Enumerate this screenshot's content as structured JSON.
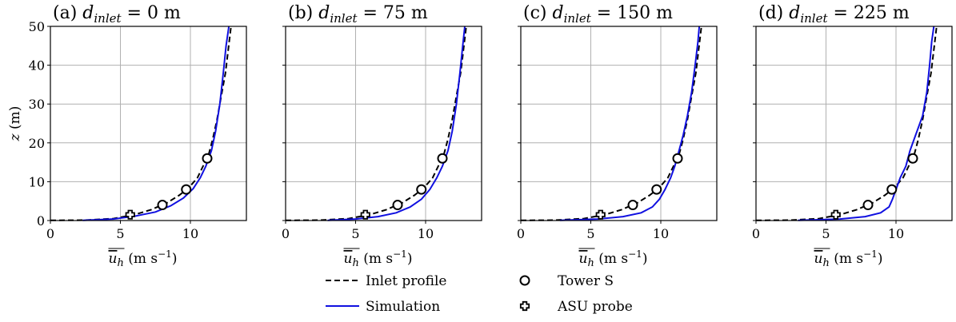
{
  "chart_data": [
    {
      "type": "line",
      "title": "(a) d_inlet = 0 m",
      "title_parts": {
        "prefix": "(a) ",
        "var": "d",
        "sub": "inlet",
        "rest": " = 0 m"
      },
      "xlabel": "u_h (m s⁻¹)",
      "ylabel": "z (m)",
      "xlim": [
        0,
        14
      ],
      "ylim": [
        0,
        50
      ],
      "xticks": [
        0,
        5,
        10
      ],
      "yticks": [
        0,
        10,
        20,
        30,
        40,
        50
      ],
      "grid": true,
      "series": [
        {
          "name": "Inlet profile",
          "style": "dashed",
          "color": "#000000",
          "x": [
            0,
            2.5,
            4.5,
            6.0,
            7.2,
            8.3,
            9.2,
            9.9,
            10.5,
            10.9,
            11.3,
            11.6,
            11.9,
            12.2,
            12.5,
            12.7,
            12.9
          ],
          "y": [
            0.05,
            0.1,
            0.5,
            1.5,
            2.8,
            4.5,
            6.5,
            8.5,
            11,
            14,
            17,
            21,
            26,
            32,
            38,
            44,
            50
          ]
        },
        {
          "name": "Simulation",
          "style": "solid",
          "color": "#1010e0",
          "x": [
            2.3,
            4.5,
            6.0,
            7.5,
            8.6,
            9.5,
            10.2,
            10.7,
            11.1,
            11.5,
            11.8,
            12.1,
            12.35,
            12.55,
            12.75
          ],
          "y": [
            0.05,
            0.4,
            1.1,
            2.2,
            3.8,
            5.8,
            8.2,
            11,
            14,
            18,
            23,
            30,
            38,
            45,
            50
          ]
        },
        {
          "name": "Tower S",
          "style": "marker-circle",
          "x": [
            8.0,
            9.7,
            11.2
          ],
          "y": [
            4,
            8,
            16
          ]
        },
        {
          "name": "ASU probe",
          "style": "marker-plus",
          "x": [
            5.7
          ],
          "y": [
            1.5
          ]
        }
      ]
    },
    {
      "type": "line",
      "title": "(b) d_inlet = 75 m",
      "title_parts": {
        "prefix": "(b) ",
        "var": "d",
        "sub": "inlet",
        "rest": " = 75 m"
      },
      "xlabel": "u_h (m s⁻¹)",
      "xlim": [
        0,
        14
      ],
      "ylim": [
        0,
        50
      ],
      "xticks": [
        0,
        5,
        10
      ],
      "yticks": [
        0,
        10,
        20,
        30,
        40,
        50
      ],
      "grid": true,
      "series": [
        {
          "name": "Inlet profile",
          "style": "dashed",
          "color": "#000000",
          "x": [
            0,
            2.5,
            4.5,
            6.0,
            7.2,
            8.3,
            9.2,
            9.9,
            10.5,
            10.9,
            11.3,
            11.6,
            11.9,
            12.2,
            12.5,
            12.7,
            12.9
          ],
          "y": [
            0.05,
            0.1,
            0.5,
            1.5,
            2.8,
            4.5,
            6.5,
            8.5,
            11,
            14,
            17,
            21,
            26,
            32,
            38,
            44,
            50
          ]
        },
        {
          "name": "Simulation",
          "style": "solid",
          "color": "#1010e0",
          "x": [
            3.0,
            5.0,
            6.6,
            7.9,
            8.9,
            9.7,
            10.3,
            10.8,
            11.2,
            11.6,
            11.9,
            12.2,
            12.45,
            12.65,
            12.8
          ],
          "y": [
            0.05,
            0.4,
            1.0,
            2.0,
            3.5,
            5.5,
            8.0,
            11,
            14,
            18,
            23,
            30,
            38,
            45,
            50
          ]
        },
        {
          "name": "Tower S",
          "style": "marker-circle",
          "x": [
            8.0,
            9.7,
            11.2
          ],
          "y": [
            4,
            8,
            16
          ]
        },
        {
          "name": "ASU probe",
          "style": "marker-plus",
          "x": [
            5.7
          ],
          "y": [
            1.5
          ]
        }
      ]
    },
    {
      "type": "line",
      "title": "(c) d_inlet = 150 m",
      "title_parts": {
        "prefix": "(c) ",
        "var": "d",
        "sub": "inlet",
        "rest": " = 150 m"
      },
      "xlabel": "u_h (m s⁻¹)",
      "xlim": [
        0,
        14
      ],
      "ylim": [
        0,
        50
      ],
      "xticks": [
        0,
        5,
        10
      ],
      "yticks": [
        0,
        10,
        20,
        30,
        40,
        50
      ],
      "grid": true,
      "series": [
        {
          "name": "Inlet profile",
          "style": "dashed",
          "color": "#000000",
          "x": [
            0,
            2.5,
            4.5,
            6.0,
            7.2,
            8.3,
            9.2,
            9.9,
            10.5,
            10.9,
            11.3,
            11.6,
            11.9,
            12.2,
            12.5,
            12.7,
            12.9
          ],
          "y": [
            0.05,
            0.1,
            0.5,
            1.5,
            2.8,
            4.5,
            6.5,
            8.5,
            11,
            14,
            17,
            21,
            26,
            32,
            38,
            44,
            50
          ]
        },
        {
          "name": "Simulation",
          "style": "solid",
          "color": "#1010e0",
          "x": [
            2.8,
            5.5,
            7.3,
            8.6,
            9.4,
            9.9,
            10.3,
            10.7,
            11.0,
            11.3,
            11.6,
            11.9,
            12.2,
            12.45,
            12.65,
            12.75
          ],
          "y": [
            0.05,
            0.4,
            1.0,
            2.0,
            3.5,
            5.5,
            8.0,
            11,
            14,
            18,
            22,
            27,
            33,
            40,
            46,
            50
          ]
        },
        {
          "name": "Tower S",
          "style": "marker-circle",
          "x": [
            8.0,
            9.7,
            11.2
          ],
          "y": [
            4,
            8,
            16
          ]
        },
        {
          "name": "ASU probe",
          "style": "marker-plus",
          "x": [
            5.7
          ],
          "y": [
            1.5
          ]
        }
      ]
    },
    {
      "type": "line",
      "title": "(d) d_inlet = 225 m",
      "title_parts": {
        "prefix": "(d) ",
        "var": "d",
        "sub": "inlet",
        "rest": " = 225 m"
      },
      "xlabel": "u_h (m s⁻¹)",
      "xlim": [
        0,
        14
      ],
      "ylim": [
        0,
        50
      ],
      "xticks": [
        0,
        5,
        10
      ],
      "yticks": [
        0,
        10,
        20,
        30,
        40,
        50
      ],
      "grid": true,
      "series": [
        {
          "name": "Inlet profile",
          "style": "dashed",
          "color": "#000000",
          "x": [
            0,
            2.5,
            4.5,
            6.0,
            7.2,
            8.3,
            9.2,
            9.9,
            10.5,
            10.9,
            11.3,
            11.6,
            11.9,
            12.2,
            12.5,
            12.7,
            12.9
          ],
          "y": [
            0.05,
            0.1,
            0.5,
            1.5,
            2.8,
            4.5,
            6.5,
            8.5,
            11,
            14,
            17,
            21,
            26,
            32,
            38,
            44,
            50
          ]
        },
        {
          "name": "Simulation",
          "style": "solid",
          "color": "#1010e0",
          "x": [
            3.0,
            6.0,
            7.8,
            8.9,
            9.5,
            9.75,
            10.0,
            10.3,
            10.7,
            11.0,
            11.4,
            11.9,
            12.2,
            12.4,
            12.55,
            12.7
          ],
          "y": [
            0.05,
            0.4,
            1.0,
            2.0,
            3.5,
            5.5,
            8.0,
            11,
            14,
            18,
            22,
            27,
            33,
            40,
            46,
            50
          ]
        },
        {
          "name": "Tower S",
          "style": "marker-circle",
          "x": [
            8.0,
            9.7,
            11.2
          ],
          "y": [
            4,
            8,
            16
          ]
        },
        {
          "name": "ASU probe",
          "style": "marker-plus",
          "x": [
            5.7
          ],
          "y": [
            1.5
          ]
        }
      ]
    }
  ],
  "legend": {
    "position": "bottom-center",
    "items": [
      {
        "label": "Inlet profile",
        "kind": "dashed-line"
      },
      {
        "label": "Tower S",
        "kind": "circle-marker"
      },
      {
        "label": "Simulation",
        "kind": "solid-line"
      },
      {
        "label": "ASU probe",
        "kind": "plus-marker"
      }
    ]
  },
  "colors": {
    "simulation": "#1010e0",
    "inlet": "#000000",
    "grid": "#b0b0b0"
  }
}
